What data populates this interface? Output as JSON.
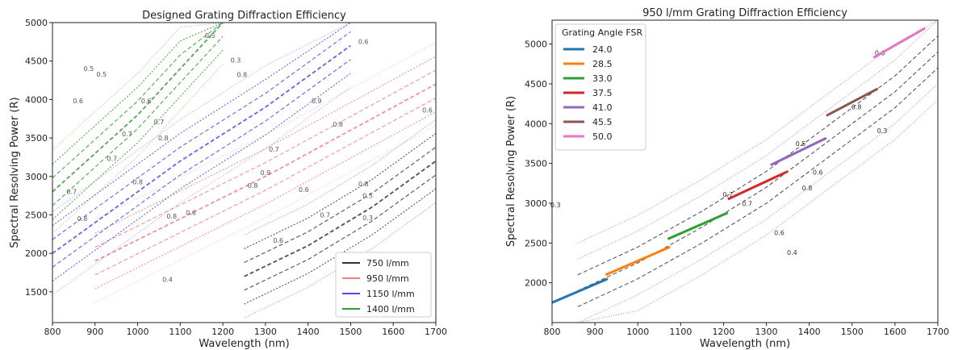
{
  "chart_data": [
    {
      "type": "line",
      "title": "Designed Grating Diffraction Efficiency",
      "xlabel": "Wavelength (nm)",
      "ylabel": "Spectral Resolving Power (R)",
      "xlim": [
        800,
        1700
      ],
      "ylim": [
        1100,
        5000
      ],
      "xticks": [
        800,
        900,
        1000,
        1100,
        1200,
        1300,
        1400,
        1500,
        1600,
        1700
      ],
      "yticks": [
        1500,
        2000,
        2500,
        3000,
        3500,
        4000,
        4500,
        5000
      ],
      "legend_position": "bottom-right",
      "series": [
        {
          "name": "750 l/mm",
          "color": "#333333",
          "x": [
            1250,
            1400,
            1550,
            1700
          ],
          "y": [
            1700,
            2100,
            2600,
            3200
          ]
        },
        {
          "name": "950 l/mm",
          "color": "#f08080",
          "x": [
            900,
            1100,
            1300,
            1500,
            1700
          ],
          "y": [
            1900,
            2450,
            3000,
            3600,
            4200
          ]
        },
        {
          "name": "1150 l/mm",
          "color": "#4a4ae8",
          "x": [
            800,
            950,
            1100,
            1300,
            1500
          ],
          "y": [
            2000,
            2600,
            3200,
            3900,
            4700
          ]
        },
        {
          "name": "1400 l/mm",
          "color": "#2e9e2e",
          "x": [
            800,
            900,
            1000,
            1100,
            1200
          ],
          "y": [
            2800,
            3300,
            3800,
            4400,
            5000
          ]
        }
      ],
      "contour_levels": [
        {
          "label": "0.7",
          "x": 845,
          "y": 2770
        },
        {
          "label": "0.8",
          "x": 870,
          "y": 2420
        },
        {
          "label": "0.8",
          "x": 1060,
          "y": 3470
        },
        {
          "label": "0.7",
          "x": 1050,
          "y": 3680
        },
        {
          "label": "0.8",
          "x": 1000,
          "y": 2900
        },
        {
          "label": "0.8",
          "x": 1080,
          "y": 2450
        },
        {
          "label": "0.7",
          "x": 940,
          "y": 3200
        },
        {
          "label": "0.6",
          "x": 1020,
          "y": 3950
        },
        {
          "label": "0.5",
          "x": 1170,
          "y": 4800
        },
        {
          "label": "0.6",
          "x": 1125,
          "y": 2500
        },
        {
          "label": "0.8",
          "x": 1270,
          "y": 2850
        },
        {
          "label": "0.9",
          "x": 1300,
          "y": 3020
        },
        {
          "label": "0.7",
          "x": 1320,
          "y": 3320
        },
        {
          "label": "0.9",
          "x": 1420,
          "y": 3950
        },
        {
          "label": "0.8",
          "x": 1245,
          "y": 4290
        },
        {
          "label": "0.6",
          "x": 1530,
          "y": 4720
        },
        {
          "label": "0.6",
          "x": 1390,
          "y": 2800
        },
        {
          "label": "0.7",
          "x": 1440,
          "y": 2470
        },
        {
          "label": "0.5",
          "x": 1540,
          "y": 2720
        },
        {
          "label": "0.8",
          "x": 1470,
          "y": 3650
        },
        {
          "label": "0.8",
          "x": 1530,
          "y": 2870
        },
        {
          "label": "0.6",
          "x": 1330,
          "y": 2140
        },
        {
          "label": "0.4",
          "x": 1070,
          "y": 1630
        },
        {
          "label": "0.3",
          "x": 1540,
          "y": 2430
        },
        {
          "label": "0.6",
          "x": 1680,
          "y": 3830
        },
        {
          "label": "0.3",
          "x": 1230,
          "y": 4480
        },
        {
          "label": "0.5",
          "x": 885,
          "y": 4370
        },
        {
          "label": "0.7",
          "x": 975,
          "y": 3520
        },
        {
          "label": "0.6",
          "x": 860,
          "y": 3950
        },
        {
          "label": "0.5",
          "x": 915,
          "y": 4300
        }
      ]
    },
    {
      "type": "line",
      "title": "950 l/mm Grating Diffraction Efficiency",
      "xlabel": "Wavelength (nm)",
      "ylabel": "Spectral Resolving Power (R)",
      "xlim": [
        800,
        1700
      ],
      "ylim": [
        1500,
        5300
      ],
      "xticks": [
        800,
        900,
        1000,
        1100,
        1200,
        1300,
        1400,
        1500,
        1600,
        1700
      ],
      "yticks": [
        2000,
        2500,
        3000,
        3500,
        4000,
        4500,
        5000
      ],
      "legend_title": "Grating Angle FSR",
      "legend_position": "top-left",
      "series": [
        {
          "name": "24.0",
          "color": "#1f77b4",
          "x": [
            800,
            930
          ],
          "y": [
            1750,
            2050
          ]
        },
        {
          "name": "28.5",
          "color": "#ff7f0e",
          "x": [
            925,
            1075
          ],
          "y": [
            2100,
            2450
          ]
        },
        {
          "name": "33.0",
          "color": "#2ca02c",
          "x": [
            1070,
            1210
          ],
          "y": [
            2550,
            2880
          ]
        },
        {
          "name": "37.5",
          "color": "#d62728",
          "x": [
            1210,
            1350
          ],
          "y": [
            3050,
            3400
          ]
        },
        {
          "name": "41.0",
          "color": "#9467bd",
          "x": [
            1310,
            1440
          ],
          "y": [
            3480,
            3820
          ]
        },
        {
          "name": "45.5",
          "color": "#8c564b",
          "x": [
            1440,
            1560
          ],
          "y": [
            4100,
            4440
          ]
        },
        {
          "name": "50.0",
          "color": "#e377c2",
          "x": [
            1550,
            1670
          ],
          "y": [
            4830,
            5200
          ]
        }
      ],
      "contour_levels": [
        {
          "label": "0.3",
          "x": 808,
          "y": 2950
        },
        {
          "label": "0.7",
          "x": 1210,
          "y": 3080
        },
        {
          "label": "0.7",
          "x": 1255,
          "y": 2965
        },
        {
          "label": "0.5",
          "x": 1380,
          "y": 3720
        },
        {
          "label": "0.6",
          "x": 1420,
          "y": 3360
        },
        {
          "label": "0.8",
          "x": 1395,
          "y": 3160
        },
        {
          "label": "0.6",
          "x": 1330,
          "y": 2600
        },
        {
          "label": "0.4",
          "x": 1360,
          "y": 2350
        },
        {
          "label": "0.3",
          "x": 1570,
          "y": 3880
        },
        {
          "label": "0.6",
          "x": 1565,
          "y": 4860
        },
        {
          "label": "0.8",
          "x": 1510,
          "y": 4180
        }
      ]
    }
  ]
}
